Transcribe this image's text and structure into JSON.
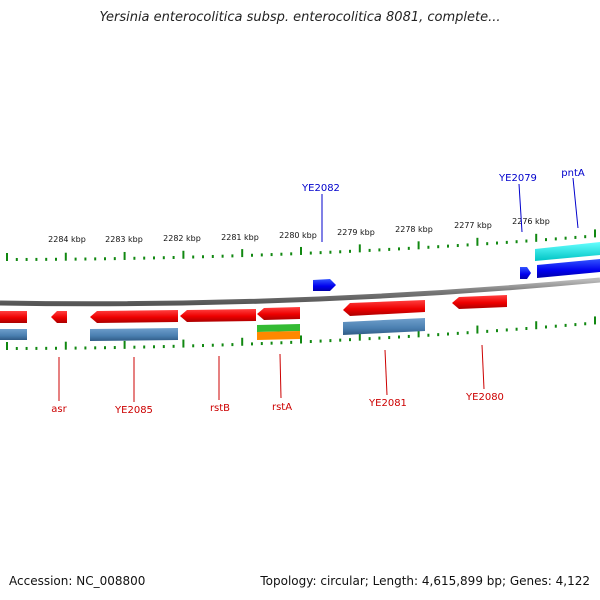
{
  "title": "Yersinia enterocolitica subsp. enterocolitica 8081, complete...",
  "accession_text": "Accession: NC_008800",
  "summary_text": "Topology: circular; Length: 4,615,899 bp; Genes: 4,122",
  "ruler_labels": [
    "2284 kbp",
    "2283 kbp",
    "2282 kbp",
    "2281 kbp",
    "2280 kbp",
    "2279 kbp",
    "2278 kbp",
    "2277 kbp",
    "2276 kbp"
  ],
  "genes": {
    "YE2082": "YE2082",
    "YE2079": "YE2079",
    "pntA": "pntA",
    "asr": "asr",
    "YE2085": "YE2085",
    "rstB": "rstB",
    "rstA": "rstA",
    "YE2081": "YE2081",
    "YE2080": "YE2080"
  },
  "colors": {
    "forward_label": "#0000cc",
    "reverse_label": "#cc0000",
    "reverse_gene": "#ff0000",
    "forward_gene": "#0000ff",
    "cds_bar": "#4a7fb0",
    "rna_green": "#33bb33",
    "rna_orange": "#ff8800",
    "cyan_bar": "#00e0e0",
    "ticks": "#118811",
    "backbone": "#888888"
  }
}
